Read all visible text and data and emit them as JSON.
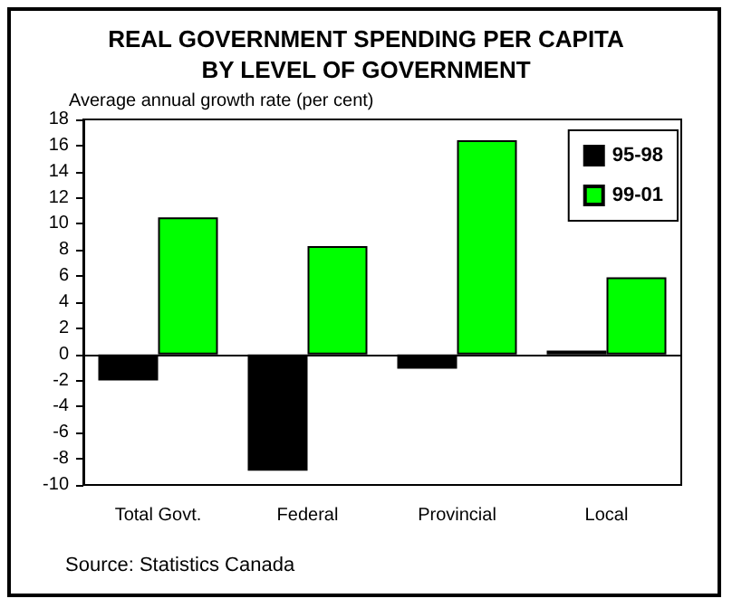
{
  "chart_data": {
    "type": "bar",
    "title": "REAL GOVERNMENT SPENDING PER CAPITA\nBY LEVEL OF GOVERNMENT",
    "ylabel": "Average annual growth rate (per cent)",
    "categories": [
      "Total Govt.",
      "Federal",
      "Provincial",
      "Local"
    ],
    "series": [
      {
        "name": "95-98",
        "color": "#000000",
        "values": [
          -2.0,
          -8.9,
          -1.1,
          0.3
        ]
      },
      {
        "name": "99-01",
        "color": "#00ff00",
        "values": [
          10.5,
          8.3,
          16.4,
          5.9
        ]
      }
    ],
    "ylim": [
      -10,
      18
    ],
    "yticks": [
      -10,
      -8,
      -6,
      -4,
      -2,
      0,
      2,
      4,
      6,
      8,
      10,
      12,
      14,
      16,
      18
    ],
    "legend": "top right",
    "annotations": [
      "Source: Statistics Canada"
    ]
  }
}
